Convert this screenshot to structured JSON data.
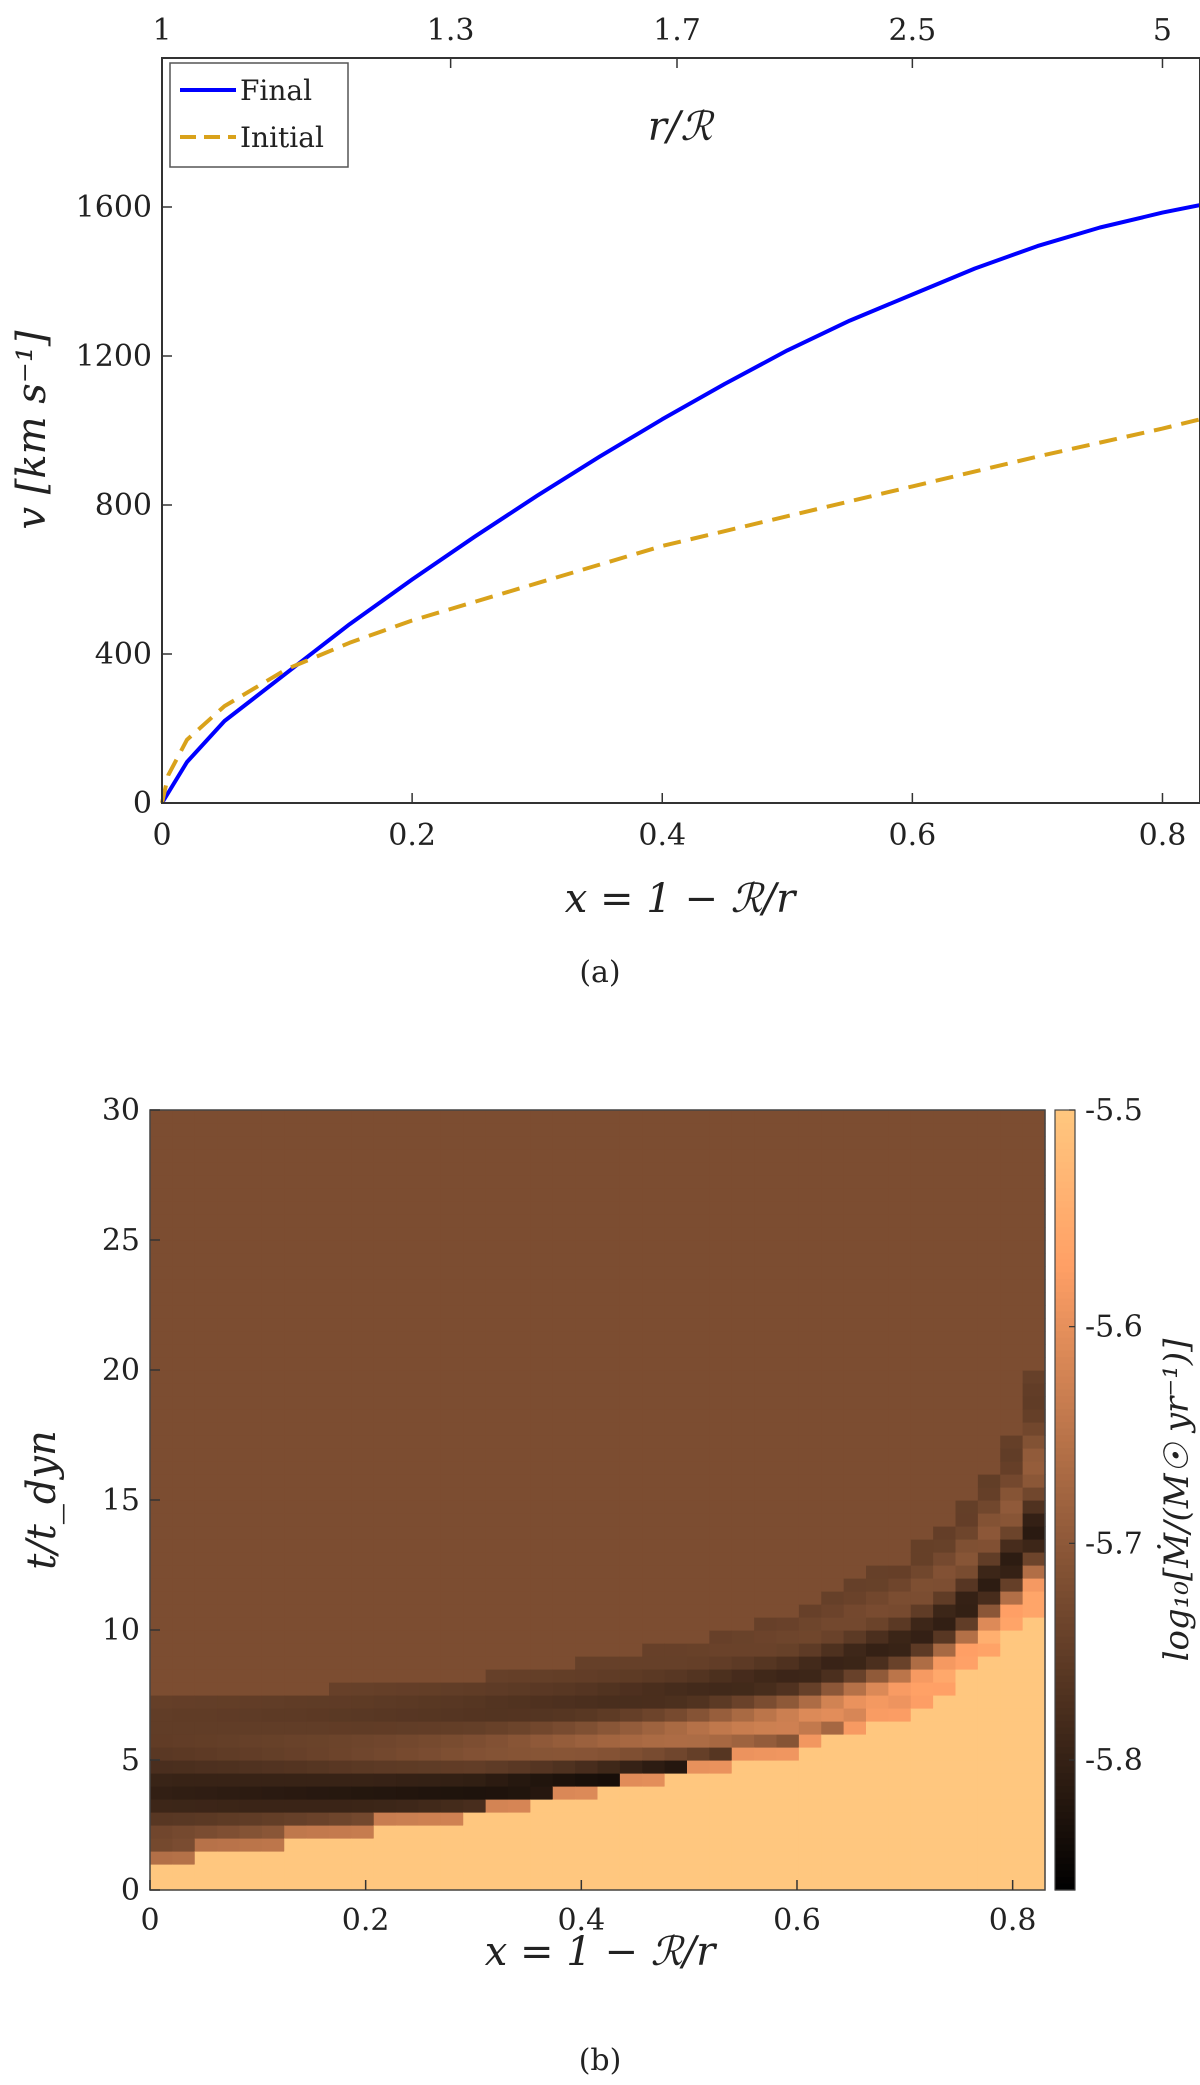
{
  "chart_data": [
    {
      "panel": "(a)",
      "type": "line",
      "xlabel": "x = 1 − ℛ/r",
      "ylabel": "v [km s⁻¹]",
      "top_axis_label": "r/ℛ",
      "xlim": [
        0,
        0.83
      ],
      "ylim": [
        0,
        2000
      ],
      "xticks": [
        0,
        0.2,
        0.4,
        0.6,
        0.8
      ],
      "xtick_labels": [
        "0",
        "0.2",
        "0.4",
        "0.6",
        "0.8"
      ],
      "yticks": [
        0,
        400,
        800,
        1200,
        1600
      ],
      "ytick_labels": [
        "0",
        "400",
        "800",
        "1200",
        "1600"
      ],
      "top_ticks_x": [
        0,
        0.2308,
        0.4118,
        0.6,
        0.8
      ],
      "top_tick_labels": [
        "1",
        "1.3",
        "1.7",
        "2.5",
        "5"
      ],
      "legend_position": "top-left",
      "series": [
        {
          "name": "Final",
          "color": "#0000ff",
          "style": "solid",
          "x": [
            0,
            0.02,
            0.05,
            0.1,
            0.15,
            0.2,
            0.25,
            0.3,
            0.35,
            0.4,
            0.45,
            0.5,
            0.55,
            0.6,
            0.65,
            0.7,
            0.75,
            0.8,
            0.83
          ],
          "y": [
            0,
            110,
            220,
            350,
            480,
            600,
            715,
            825,
            930,
            1030,
            1125,
            1215,
            1295,
            1365,
            1435,
            1495,
            1545,
            1585,
            1605
          ]
        },
        {
          "name": "Initial",
          "color": "#d9a21b",
          "style": "dashed",
          "x": [
            0,
            0.005,
            0.02,
            0.05,
            0.1,
            0.15,
            0.2,
            0.3,
            0.4,
            0.5,
            0.6,
            0.7,
            0.8,
            0.83
          ],
          "y": [
            0,
            75,
            170,
            260,
            360,
            430,
            490,
            590,
            690,
            770,
            850,
            930,
            1005,
            1030
          ]
        }
      ]
    },
    {
      "panel": "(b)",
      "type": "heatmap",
      "xlabel": "x = 1 − ℛ/r",
      "ylabel": "t/t_dyn",
      "colorbar_label": "log₁₀[Ṁ/(M☉ yr⁻¹)]",
      "xlim": [
        0,
        0.83
      ],
      "ylim": [
        0,
        30
      ],
      "xticks": [
        0,
        0.2,
        0.4,
        0.6,
        0.8
      ],
      "xtick_labels": [
        "0",
        "0.2",
        "0.4",
        "0.6",
        "0.8"
      ],
      "yticks": [
        0,
        5,
        10,
        15,
        20,
        25,
        30
      ],
      "ytick_labels": [
        "0",
        "5",
        "10",
        "15",
        "20",
        "25",
        "30"
      ],
      "colorbar_range": [
        -5.86,
        -5.5
      ],
      "colorbar_ticks": [
        -5.5,
        -5.6,
        -5.7,
        -5.8
      ],
      "colorbar_tick_labels": [
        "-5.5",
        "-5.6",
        "-5.7",
        "-5.8"
      ],
      "colormap": "copper",
      "background_value": -5.72,
      "front_boundary": {
        "x": [
          0,
          0.1,
          0.2,
          0.3,
          0.4,
          0.5,
          0.6,
          0.7,
          0.75,
          0.8,
          0.83
        ],
        "t": [
          1.0,
          1.6,
          2.2,
          2.8,
          3.6,
          4.4,
          5.3,
          6.8,
          8.0,
          9.8,
          11.0
        ]
      },
      "upper_boundary": {
        "x": [
          0,
          0.1,
          0.2,
          0.3,
          0.4,
          0.5,
          0.6,
          0.7,
          0.75,
          0.8,
          0.83
        ],
        "t": [
          7.4,
          7.6,
          7.8,
          8.2,
          8.8,
          9.6,
          10.8,
          12.8,
          14.5,
          17.5,
          21.0
        ]
      }
    }
  ],
  "captions": {
    "a": "(a)",
    "b": "(b)"
  }
}
